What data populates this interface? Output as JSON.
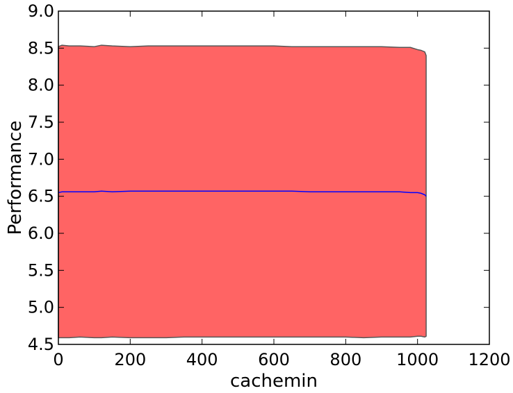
{
  "chart_data": {
    "type": "area",
    "title": "",
    "xlabel": "cachemin",
    "ylabel": "Performance",
    "xlim": [
      0,
      1200
    ],
    "ylim": [
      4.5,
      9.0
    ],
    "xticks": [
      0,
      200,
      400,
      600,
      800,
      1000,
      1200
    ],
    "yticks": [
      4.5,
      5.0,
      5.5,
      6.0,
      6.5,
      7.0,
      7.5,
      8.0,
      8.5,
      9.0
    ],
    "xtick_labels": [
      "0",
      "200",
      "400",
      "600",
      "800",
      "1000",
      "1200"
    ],
    "ytick_labels": [
      "4.5",
      "5.0",
      "5.5",
      "6.0",
      "6.5",
      "7.0",
      "7.5",
      "8.0",
      "8.5",
      "9.0"
    ],
    "grid": false,
    "legend": null,
    "colors": {
      "band_fill": "#ff6464",
      "band_edge": "#555555",
      "mean_line": "#0000ff",
      "axes": "#000000"
    },
    "x": [
      0,
      10,
      30,
      60,
      100,
      120,
      150,
      200,
      250,
      300,
      350,
      400,
      450,
      500,
      550,
      600,
      650,
      700,
      750,
      800,
      850,
      900,
      950,
      980,
      1000,
      1010,
      1020,
      1024
    ],
    "upper": [
      8.52,
      8.54,
      8.53,
      8.53,
      8.52,
      8.54,
      8.53,
      8.52,
      8.53,
      8.53,
      8.53,
      8.53,
      8.53,
      8.53,
      8.53,
      8.53,
      8.52,
      8.52,
      8.52,
      8.52,
      8.52,
      8.52,
      8.51,
      8.51,
      8.48,
      8.47,
      8.45,
      8.4
    ],
    "mean": [
      6.55,
      6.56,
      6.56,
      6.56,
      6.56,
      6.57,
      6.56,
      6.57,
      6.57,
      6.57,
      6.57,
      6.57,
      6.57,
      6.57,
      6.57,
      6.57,
      6.57,
      6.56,
      6.56,
      6.56,
      6.56,
      6.56,
      6.56,
      6.55,
      6.55,
      6.54,
      6.52,
      6.5
    ],
    "lower": [
      4.59,
      4.59,
      4.59,
      4.6,
      4.59,
      4.59,
      4.6,
      4.59,
      4.59,
      4.59,
      4.6,
      4.6,
      4.6,
      4.6,
      4.6,
      4.6,
      4.6,
      4.6,
      4.6,
      4.6,
      4.59,
      4.6,
      4.6,
      4.6,
      4.61,
      4.61,
      4.6,
      4.61
    ]
  }
}
